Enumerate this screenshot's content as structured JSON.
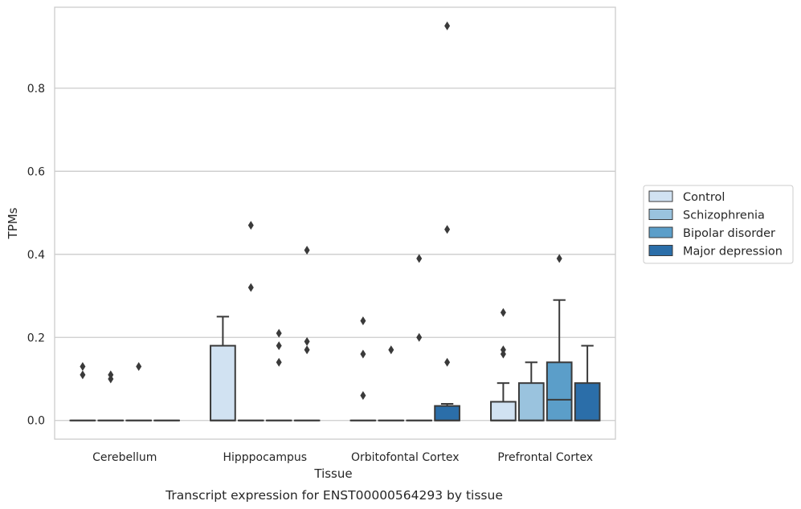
{
  "caption": "Transcript expression for ENST00000564293 by tissue",
  "chart_data": {
    "type": "box",
    "xlabel": "Tissue",
    "ylabel": "TPMs",
    "ylim": [
      -0.045,
      0.995
    ],
    "y_ticks": [
      0.0,
      0.2,
      0.4,
      0.6,
      0.8
    ],
    "y_tick_labels": [
      "0.0",
      "0.2",
      "0.4",
      "0.6",
      "0.8"
    ],
    "grid": "horizontal",
    "legend_position": "right",
    "categories": [
      "Cerebellum",
      "Hipppocampus",
      "Orbitofontal Cortex",
      "Prefrontal Cortex"
    ],
    "series": [
      {
        "name": "Control",
        "color": "#d1e2f2",
        "boxes": [
          {
            "q1": 0,
            "median": 0,
            "q3": 0,
            "whisker_low": 0,
            "whisker_high": 0,
            "outliers": [
              0.13,
              0.11
            ]
          },
          {
            "q1": 0,
            "median": 0,
            "q3": 0.18,
            "whisker_low": 0,
            "whisker_high": 0.25,
            "outliers": []
          },
          {
            "q1": 0,
            "median": 0,
            "q3": 0,
            "whisker_low": 0,
            "whisker_high": 0,
            "outliers": [
              0.24,
              0.16,
              0.06
            ]
          },
          {
            "q1": 0,
            "median": 0,
            "q3": 0.045,
            "whisker_low": 0,
            "whisker_high": 0.09,
            "outliers": [
              0.26,
              0.17,
              0.16
            ]
          }
        ]
      },
      {
        "name": "Schizophrenia",
        "color": "#9ac3de",
        "boxes": [
          {
            "q1": 0,
            "median": 0,
            "q3": 0,
            "whisker_low": 0,
            "whisker_high": 0,
            "outliers": [
              0.11,
              0.1
            ]
          },
          {
            "q1": 0,
            "median": 0,
            "q3": 0,
            "whisker_low": 0,
            "whisker_high": 0,
            "outliers": [
              0.47,
              0.32
            ]
          },
          {
            "q1": 0,
            "median": 0,
            "q3": 0,
            "whisker_low": 0,
            "whisker_high": 0,
            "outliers": [
              0.17
            ]
          },
          {
            "q1": 0,
            "median": 0,
            "q3": 0.09,
            "whisker_low": 0,
            "whisker_high": 0.14,
            "outliers": []
          }
        ]
      },
      {
        "name": "Bipolar disorder",
        "color": "#5b9ec9",
        "boxes": [
          {
            "q1": 0,
            "median": 0,
            "q3": 0,
            "whisker_low": 0,
            "whisker_high": 0,
            "outliers": [
              0.13
            ]
          },
          {
            "q1": 0,
            "median": 0,
            "q3": 0,
            "whisker_low": 0,
            "whisker_high": 0,
            "outliers": [
              0.21,
              0.18,
              0.14
            ]
          },
          {
            "q1": 0,
            "median": 0,
            "q3": 0,
            "whisker_low": 0,
            "whisker_high": 0,
            "outliers": [
              0.39,
              0.2
            ]
          },
          {
            "q1": 0,
            "median": 0.05,
            "q3": 0.14,
            "whisker_low": 0,
            "whisker_high": 0.29,
            "outliers": [
              0.39
            ]
          }
        ]
      },
      {
        "name": "Major depression",
        "color": "#2b6ea9",
        "boxes": [
          {
            "q1": 0,
            "median": 0,
            "q3": 0,
            "whisker_low": 0,
            "whisker_high": 0,
            "outliers": []
          },
          {
            "q1": 0,
            "median": 0,
            "q3": 0,
            "whisker_low": 0,
            "whisker_high": 0,
            "outliers": [
              0.41,
              0.19,
              0.17
            ]
          },
          {
            "q1": 0,
            "median": 0,
            "q3": 0.035,
            "whisker_low": 0,
            "whisker_high": 0.04,
            "outliers": [
              0.95,
              0.46,
              0.14
            ]
          },
          {
            "q1": 0,
            "median": 0,
            "q3": 0.09,
            "whisker_low": 0,
            "whisker_high": 0.18,
            "outliers": []
          }
        ]
      }
    ]
  }
}
